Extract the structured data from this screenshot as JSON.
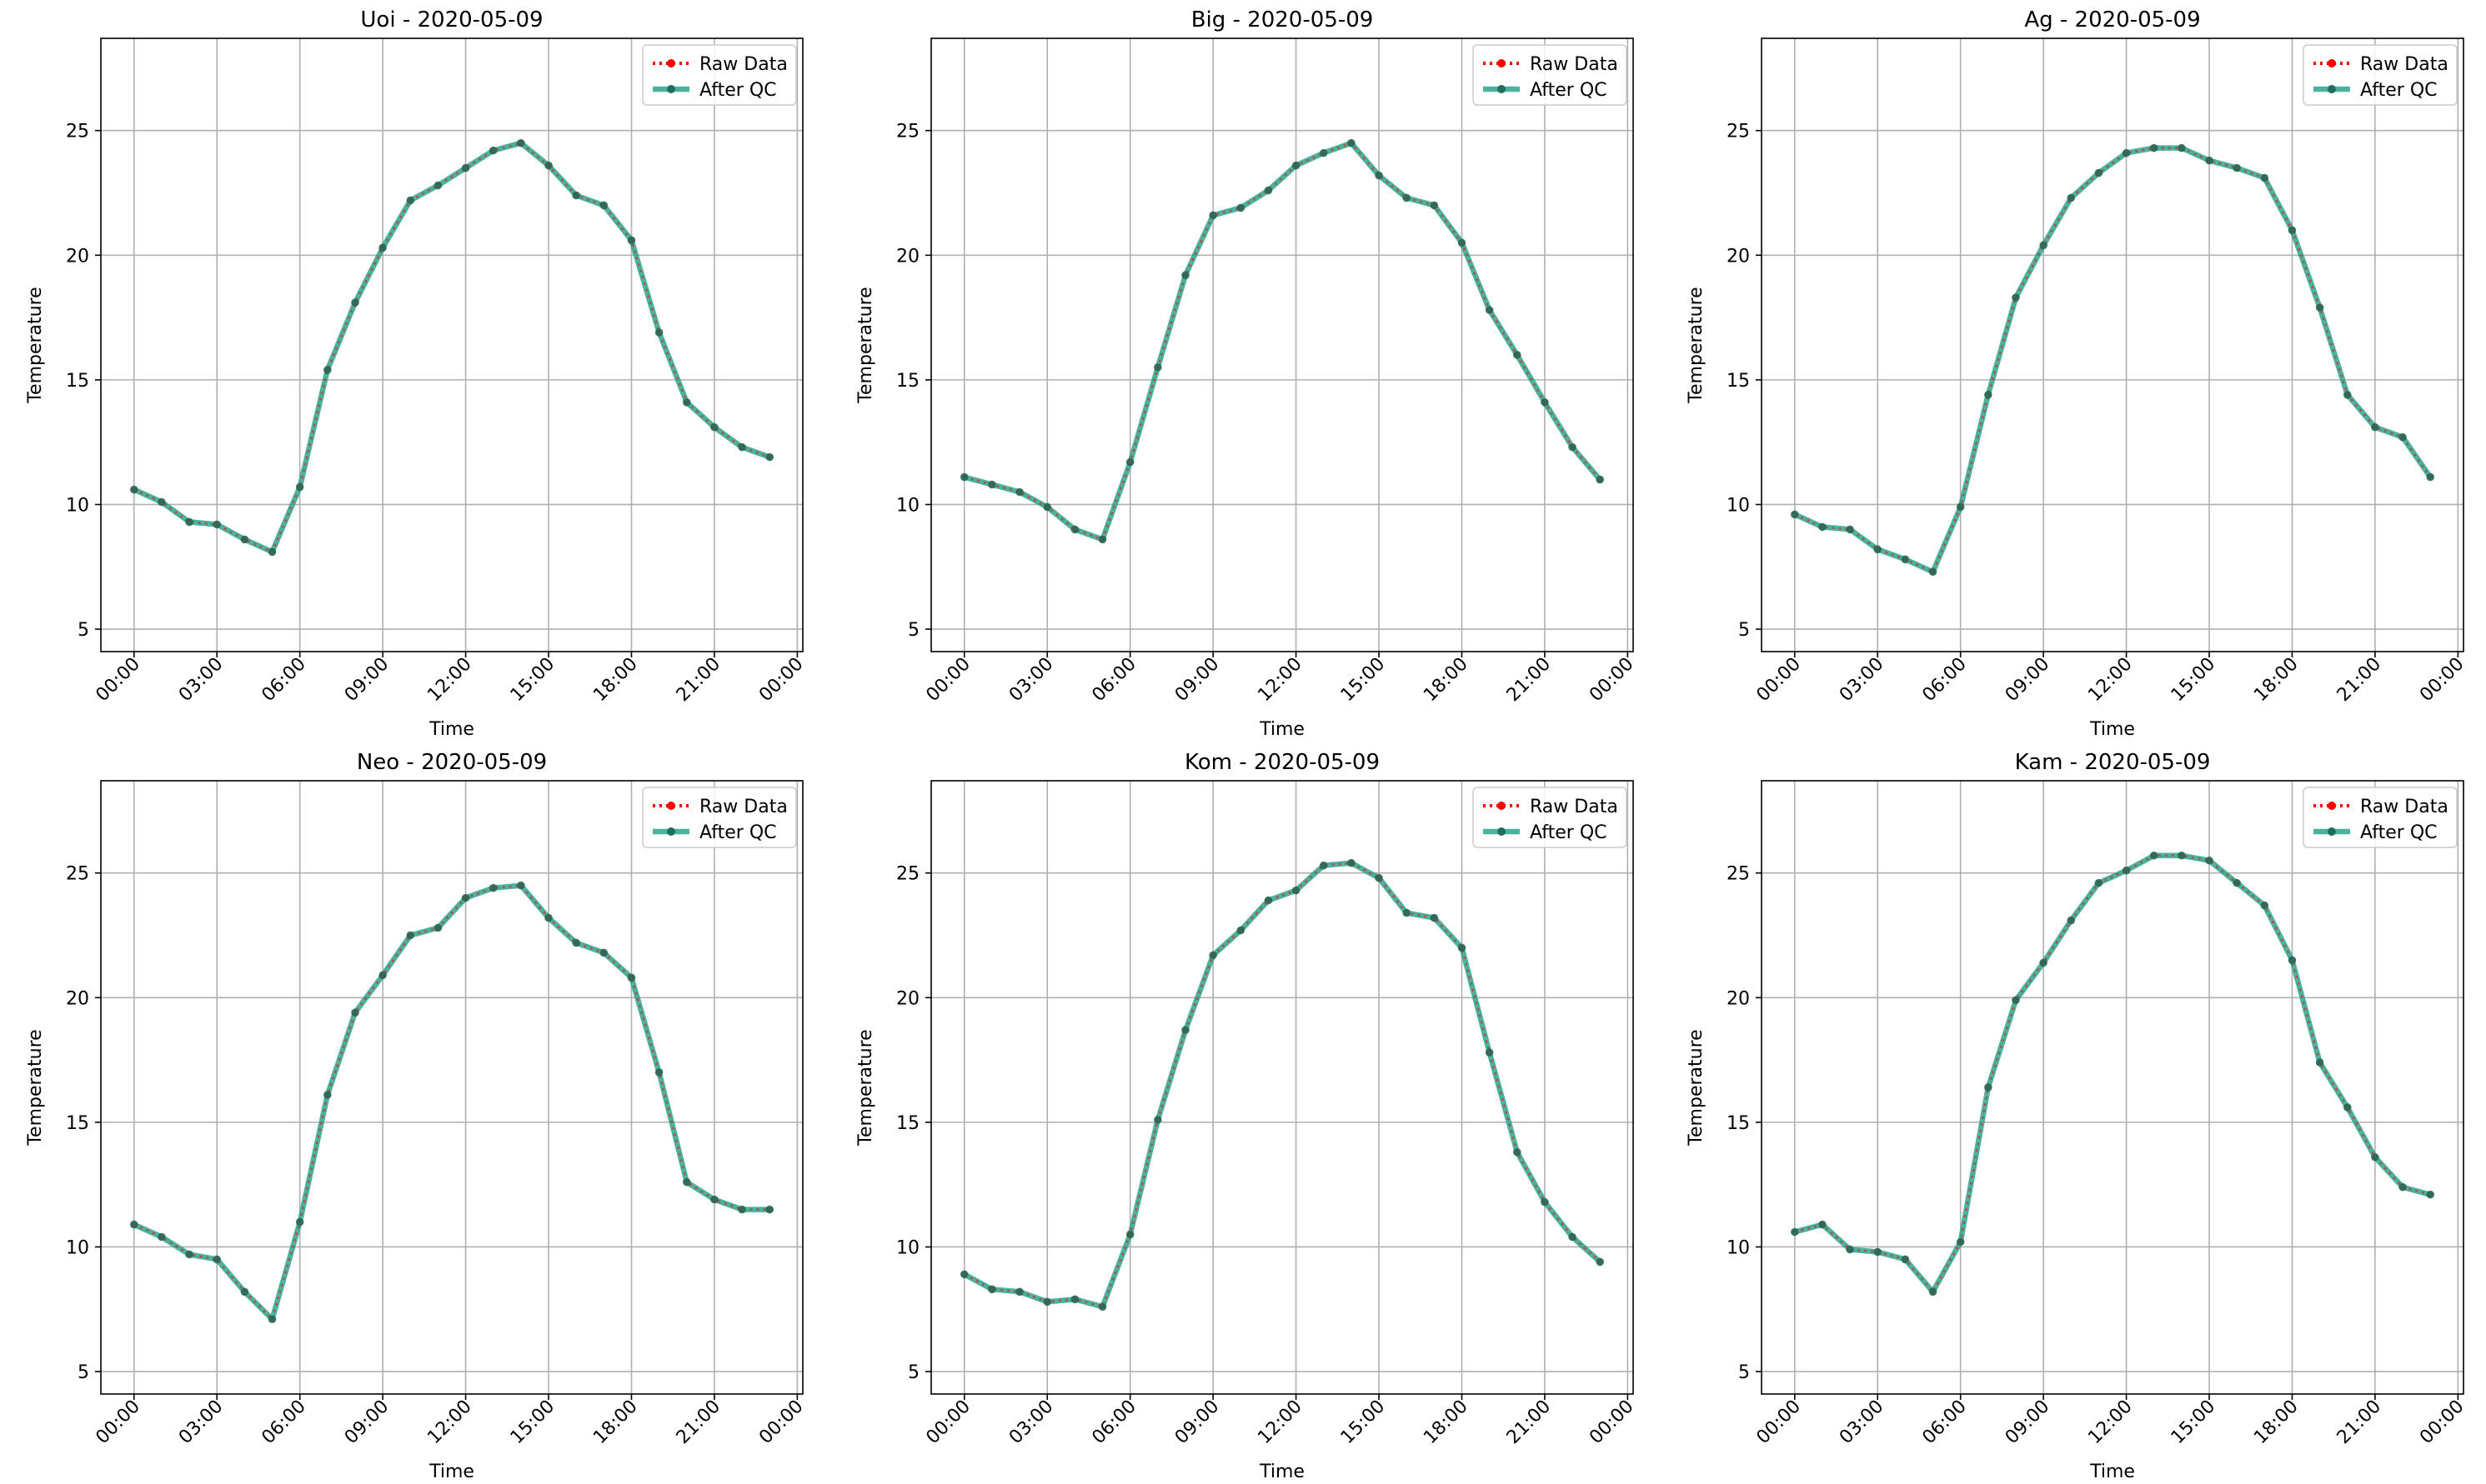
{
  "figure": {
    "background": "#ffffff"
  },
  "style": {
    "raw_color": "#ff0000",
    "qc_color": "#2ca58d",
    "marker_color": "#1f6f5c",
    "grid_color": "#b0b0b0"
  },
  "legend": {
    "raw_label": "Raw Data",
    "qc_label": "After QC",
    "placement": "upper right"
  },
  "chart_data": [
    {
      "type": "line",
      "title": "Uoi - 2020-05-09",
      "xlabel": "Time",
      "ylabel": "Temperature",
      "x_tick_labels": [
        "00:00",
        "03:00",
        "06:00",
        "09:00",
        "12:00",
        "15:00",
        "18:00",
        "21:00",
        "00:00"
      ],
      "x_ticks_hours": [
        0,
        3,
        6,
        9,
        12,
        15,
        18,
        21,
        24
      ],
      "y_ticks": [
        5,
        10,
        15,
        20,
        25
      ],
      "xlim": [
        -1.2,
        24.2
      ],
      "ylim": [
        4.1,
        28.7
      ],
      "grid": true,
      "x_hours": [
        0,
        1,
        2,
        3,
        4,
        5,
        6,
        7,
        8,
        9,
        10,
        11,
        12,
        13,
        14,
        15,
        16,
        17,
        18,
        19,
        20,
        21,
        22,
        23
      ],
      "series": [
        {
          "name": "Raw Data",
          "values": [
            10.6,
            10.1,
            9.3,
            9.2,
            8.6,
            8.1,
            10.7,
            15.4,
            18.1,
            20.3,
            22.2,
            22.8,
            23.5,
            24.2,
            24.5,
            23.6,
            22.4,
            22.0,
            20.6,
            16.9,
            14.1,
            13.1,
            12.3,
            11.9
          ]
        },
        {
          "name": "After QC",
          "values": [
            10.6,
            10.1,
            9.3,
            9.2,
            8.6,
            8.1,
            10.7,
            15.4,
            18.1,
            20.3,
            22.2,
            22.8,
            23.5,
            24.2,
            24.5,
            23.6,
            22.4,
            22.0,
            20.6,
            16.9,
            14.1,
            13.1,
            12.3,
            11.9
          ]
        }
      ]
    },
    {
      "type": "line",
      "title": "Big - 2020-05-09",
      "xlabel": "Time",
      "ylabel": "Temperature",
      "x_tick_labels": [
        "00:00",
        "03:00",
        "06:00",
        "09:00",
        "12:00",
        "15:00",
        "18:00",
        "21:00",
        "00:00"
      ],
      "x_ticks_hours": [
        0,
        3,
        6,
        9,
        12,
        15,
        18,
        21,
        24
      ],
      "y_ticks": [
        5,
        10,
        15,
        20,
        25
      ],
      "xlim": [
        -1.2,
        24.2
      ],
      "ylim": [
        4.1,
        28.7
      ],
      "grid": true,
      "x_hours": [
        0,
        1,
        2,
        3,
        4,
        5,
        6,
        7,
        8,
        9,
        10,
        11,
        12,
        13,
        14,
        15,
        16,
        17,
        18,
        19,
        20,
        21,
        22,
        23
      ],
      "series": [
        {
          "name": "Raw Data",
          "values": [
            11.1,
            10.8,
            10.5,
            9.9,
            9.0,
            8.6,
            11.7,
            15.5,
            19.2,
            21.6,
            21.9,
            22.6,
            23.6,
            24.1,
            24.5,
            23.2,
            22.3,
            22.0,
            20.5,
            17.8,
            16.0,
            14.1,
            12.3,
            11.0
          ]
        },
        {
          "name": "After QC",
          "values": [
            11.1,
            10.8,
            10.5,
            9.9,
            9.0,
            8.6,
            11.7,
            15.5,
            19.2,
            21.6,
            21.9,
            22.6,
            23.6,
            24.1,
            24.5,
            23.2,
            22.3,
            22.0,
            20.5,
            17.8,
            16.0,
            14.1,
            12.3,
            11.0
          ]
        }
      ]
    },
    {
      "type": "line",
      "title": "Ag - 2020-05-09",
      "xlabel": "Time",
      "ylabel": "Temperature",
      "x_tick_labels": [
        "00:00",
        "03:00",
        "06:00",
        "09:00",
        "12:00",
        "15:00",
        "18:00",
        "21:00",
        "00:00"
      ],
      "x_ticks_hours": [
        0,
        3,
        6,
        9,
        12,
        15,
        18,
        21,
        24
      ],
      "y_ticks": [
        5,
        10,
        15,
        20,
        25
      ],
      "xlim": [
        -1.2,
        24.2
      ],
      "ylim": [
        4.1,
        28.7
      ],
      "grid": true,
      "x_hours": [
        0,
        1,
        2,
        3,
        4,
        5,
        6,
        7,
        8,
        9,
        10,
        11,
        12,
        13,
        14,
        15,
        16,
        17,
        18,
        19,
        20,
        21,
        22,
        23
      ],
      "series": [
        {
          "name": "Raw Data",
          "values": [
            9.6,
            9.1,
            9.0,
            8.2,
            7.8,
            7.3,
            9.9,
            14.4,
            18.3,
            20.4,
            22.3,
            23.3,
            24.1,
            24.3,
            24.3,
            23.8,
            23.5,
            23.1,
            21.0,
            17.9,
            14.4,
            13.1,
            12.7,
            11.1
          ]
        },
        {
          "name": "After QC",
          "values": [
            9.6,
            9.1,
            9.0,
            8.2,
            7.8,
            7.3,
            9.9,
            14.4,
            18.3,
            20.4,
            22.3,
            23.3,
            24.1,
            24.3,
            24.3,
            23.8,
            23.5,
            23.1,
            21.0,
            17.9,
            14.4,
            13.1,
            12.7,
            11.1
          ]
        }
      ]
    },
    {
      "type": "line",
      "title": "Neo - 2020-05-09",
      "xlabel": "Time",
      "ylabel": "Temperature",
      "x_tick_labels": [
        "00:00",
        "03:00",
        "06:00",
        "09:00",
        "12:00",
        "15:00",
        "18:00",
        "21:00",
        "00:00"
      ],
      "x_ticks_hours": [
        0,
        3,
        6,
        9,
        12,
        15,
        18,
        21,
        24
      ],
      "y_ticks": [
        5,
        10,
        15,
        20,
        25
      ],
      "xlim": [
        -1.2,
        24.2
      ],
      "ylim": [
        4.1,
        28.7
      ],
      "grid": true,
      "x_hours": [
        0,
        1,
        2,
        3,
        4,
        5,
        6,
        7,
        8,
        9,
        10,
        11,
        12,
        13,
        14,
        15,
        16,
        17,
        18,
        19,
        20,
        21,
        22,
        23
      ],
      "series": [
        {
          "name": "Raw Data",
          "values": [
            10.9,
            10.4,
            9.7,
            9.5,
            8.2,
            7.1,
            11.0,
            16.1,
            19.4,
            20.9,
            22.5,
            22.8,
            24.0,
            24.4,
            24.5,
            23.2,
            22.2,
            21.8,
            20.8,
            17.0,
            12.6,
            11.9,
            11.5,
            11.5
          ]
        },
        {
          "name": "After QC",
          "values": [
            10.9,
            10.4,
            9.7,
            9.5,
            8.2,
            7.1,
            11.0,
            16.1,
            19.4,
            20.9,
            22.5,
            22.8,
            24.0,
            24.4,
            24.5,
            23.2,
            22.2,
            21.8,
            20.8,
            17.0,
            12.6,
            11.9,
            11.5,
            11.5
          ]
        }
      ]
    },
    {
      "type": "line",
      "title": "Kom - 2020-05-09",
      "xlabel": "Time",
      "ylabel": "Temperature",
      "x_tick_labels": [
        "00:00",
        "03:00",
        "06:00",
        "09:00",
        "12:00",
        "15:00",
        "18:00",
        "21:00",
        "00:00"
      ],
      "x_ticks_hours": [
        0,
        3,
        6,
        9,
        12,
        15,
        18,
        21,
        24
      ],
      "y_ticks": [
        5,
        10,
        15,
        20,
        25
      ],
      "xlim": [
        -1.2,
        24.2
      ],
      "ylim": [
        4.1,
        28.7
      ],
      "grid": true,
      "x_hours": [
        0,
        1,
        2,
        3,
        4,
        5,
        6,
        7,
        8,
        9,
        10,
        11,
        12,
        13,
        14,
        15,
        16,
        17,
        18,
        19,
        20,
        21,
        22,
        23
      ],
      "series": [
        {
          "name": "Raw Data",
          "values": [
            8.9,
            8.3,
            8.2,
            7.8,
            7.9,
            7.6,
            10.5,
            15.1,
            18.7,
            21.7,
            22.7,
            23.9,
            24.3,
            25.3,
            25.4,
            24.8,
            23.4,
            23.2,
            22.0,
            17.8,
            13.8,
            11.8,
            10.4,
            9.4
          ]
        },
        {
          "name": "After QC",
          "values": [
            8.9,
            8.3,
            8.2,
            7.8,
            7.9,
            7.6,
            10.5,
            15.1,
            18.7,
            21.7,
            22.7,
            23.9,
            24.3,
            25.3,
            25.4,
            24.8,
            23.4,
            23.2,
            22.0,
            17.8,
            13.8,
            11.8,
            10.4,
            9.4
          ]
        }
      ]
    },
    {
      "type": "line",
      "title": "Kam - 2020-05-09",
      "xlabel": "Time",
      "ylabel": "Temperature",
      "x_tick_labels": [
        "00:00",
        "03:00",
        "06:00",
        "09:00",
        "12:00",
        "15:00",
        "18:00",
        "21:00",
        "00:00"
      ],
      "x_ticks_hours": [
        0,
        3,
        6,
        9,
        12,
        15,
        18,
        21,
        24
      ],
      "y_ticks": [
        5,
        10,
        15,
        20,
        25
      ],
      "xlim": [
        -1.2,
        24.2
      ],
      "ylim": [
        4.1,
        28.7
      ],
      "grid": true,
      "x_hours": [
        0,
        1,
        2,
        3,
        4,
        5,
        6,
        7,
        8,
        9,
        10,
        11,
        12,
        13,
        14,
        15,
        16,
        17,
        18,
        19,
        20,
        21,
        22,
        23
      ],
      "series": [
        {
          "name": "Raw Data",
          "values": [
            10.6,
            10.9,
            9.9,
            9.8,
            9.5,
            8.2,
            10.2,
            16.4,
            19.9,
            21.4,
            23.1,
            24.6,
            25.1,
            25.7,
            25.7,
            25.5,
            24.6,
            23.7,
            21.5,
            17.4,
            15.6,
            13.6,
            12.4,
            12.1
          ]
        },
        {
          "name": "After QC",
          "values": [
            10.6,
            10.9,
            9.9,
            9.8,
            9.5,
            8.2,
            10.2,
            16.4,
            19.9,
            21.4,
            23.1,
            24.6,
            25.1,
            25.7,
            25.7,
            25.5,
            24.6,
            23.7,
            21.5,
            17.4,
            15.6,
            13.6,
            12.4,
            12.1
          ]
        }
      ]
    }
  ]
}
